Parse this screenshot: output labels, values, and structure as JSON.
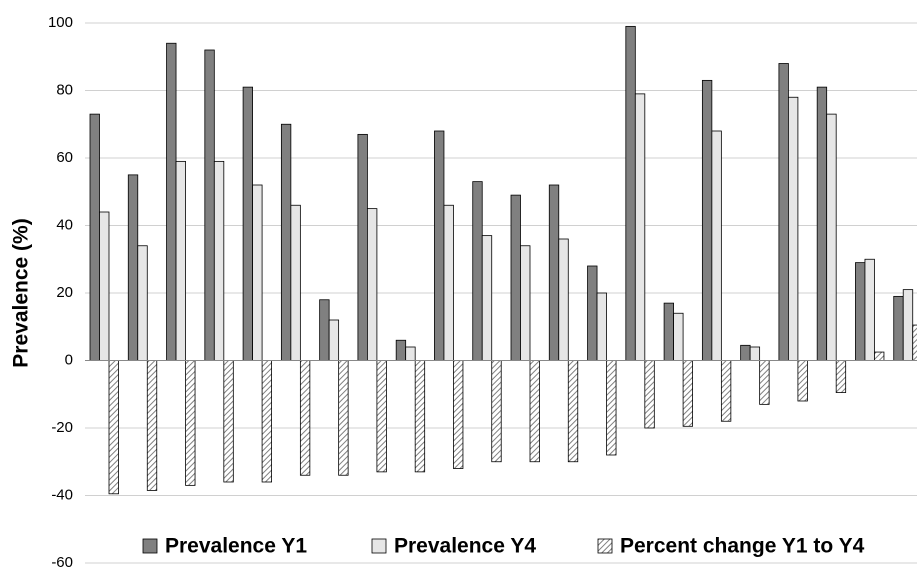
{
  "chart_data": {
    "type": "bar",
    "ylabel": "Prevalence (%)",
    "categories": [
      null,
      null,
      null,
      null,
      null,
      null,
      null,
      null,
      null,
      null,
      null,
      null,
      null,
      null,
      null,
      null,
      null,
      null,
      null,
      null,
      null,
      null
    ],
    "series": [
      {
        "name": "Prevalence Y1",
        "color": "#808080",
        "values": [
          73,
          55,
          94,
          92,
          81,
          70,
          18,
          67,
          6,
          68,
          53,
          49,
          52,
          28,
          99,
          17,
          83,
          4.5,
          88,
          81,
          29,
          19
        ]
      },
      {
        "name": "Prevalence Y4",
        "color": "#e6e6e6",
        "values": [
          44,
          34,
          59,
          59,
          52,
          46,
          12,
          45,
          4,
          46,
          37,
          34,
          36,
          20,
          79,
          14,
          68,
          4,
          78,
          73,
          30,
          21
        ]
      },
      {
        "name": "Percent change Y1 to Y4",
        "color": "#808080",
        "pattern": "hatch",
        "values": [
          -39.5,
          -38.5,
          -37,
          -36,
          -36,
          -34,
          -34,
          -33,
          -33,
          -32,
          -30,
          -30,
          -30,
          -28,
          -20,
          -19.5,
          -18,
          -13,
          -12,
          -9.5,
          2.5,
          10.5
        ]
      }
    ],
    "ylim": [
      -60,
      100
    ],
    "yticks": [
      -60,
      -40,
      -20,
      0,
      20,
      40,
      60,
      80,
      100
    ],
    "grid": true,
    "legend": "bottom"
  }
}
